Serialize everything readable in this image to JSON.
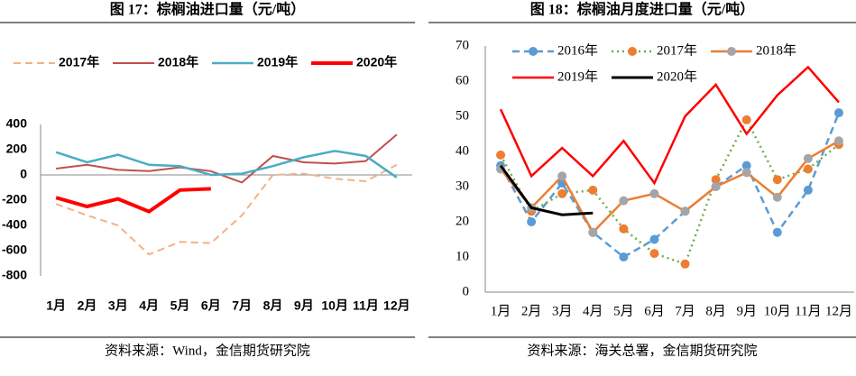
{
  "chart_data": [
    {
      "type": "line",
      "title": "图 17：棕榈油进口量（元/吨）",
      "source": "资料来源：Wind，金信期货研究院",
      "categories": [
        "1月",
        "2月",
        "3月",
        "4月",
        "5月",
        "6月",
        "7月",
        "8月",
        "9月",
        "10月",
        "11月",
        "12月"
      ],
      "ylim": [
        -800,
        400
      ],
      "yticks": [
        400,
        200,
        0,
        -200,
        -400,
        -600,
        -800
      ],
      "legend": "top",
      "series": [
        {
          "name": "2017年",
          "color": "#f4b183",
          "dash": "dashed",
          "marker": false,
          "line_width": 2,
          "values": [
            -230,
            -320,
            -400,
            -630,
            -530,
            -540,
            -320,
            0,
            10,
            -30,
            -50,
            80
          ]
        },
        {
          "name": "2018年",
          "color": "#c0504d",
          "dash": "solid",
          "marker": false,
          "line_width": 2,
          "values": [
            50,
            80,
            40,
            30,
            60,
            30,
            -60,
            150,
            100,
            90,
            110,
            320
          ]
        },
        {
          "name": "2019年",
          "color": "#4bacc6",
          "dash": "solid",
          "marker": false,
          "line_width": 2.5,
          "values": [
            180,
            100,
            160,
            80,
            70,
            0,
            10,
            70,
            140,
            190,
            150,
            -20
          ]
        },
        {
          "name": "2020年",
          "color": "#ff0000",
          "dash": "solid",
          "marker": false,
          "line_width": 4,
          "values": [
            -180,
            -250,
            -190,
            -290,
            -120,
            -110,
            null,
            null,
            null,
            null,
            null,
            null
          ]
        }
      ]
    },
    {
      "type": "line",
      "title": "图 18：棕榈油月度进口量（元/吨）",
      "source": "资料来源：海关总署，金信期货研究院",
      "categories": [
        "1月",
        "2月",
        "3月",
        "4月",
        "5月",
        "6月",
        "7月",
        "8月",
        "9月",
        "10月",
        "11月",
        "12月"
      ],
      "ylim": [
        0,
        70
      ],
      "yticks": [
        0,
        10,
        20,
        30,
        40,
        50,
        60,
        70
      ],
      "legend": "top-left",
      "series": [
        {
          "name": "2016年",
          "color": "#5b9bd5",
          "dash": "dashed",
          "marker": true,
          "line_width": 2.5,
          "values": [
            36,
            20,
            31,
            17,
            10,
            15,
            23,
            30,
            36,
            17,
            29,
            51
          ]
        },
        {
          "name": "2017年",
          "color": "#70ad47",
          "marker_color": "#ed7d31",
          "dash": "dotted",
          "marker": true,
          "line_width": 2.5,
          "values": [
            39,
            23,
            28,
            29,
            18,
            11,
            8,
            32,
            49,
            32,
            35,
            42
          ]
        },
        {
          "name": "2018年",
          "color": "#ed7d31",
          "marker_color": "#a5a5a5",
          "dash": "solid",
          "marker": true,
          "line_width": 2.5,
          "values": [
            35,
            24,
            33,
            17,
            26,
            28,
            23,
            30,
            34,
            27,
            38,
            43
          ]
        },
        {
          "name": "2019年",
          "color": "#ff0000",
          "dash": "solid",
          "marker": false,
          "line_width": 2.5,
          "values": [
            52,
            33,
            41,
            33,
            43,
            31,
            50,
            59,
            45,
            56,
            64,
            54
          ]
        },
        {
          "name": "2020年",
          "color": "#000000",
          "dash": "solid",
          "marker": false,
          "line_width": 3,
          "values": [
            36,
            24,
            22,
            22.5,
            null,
            null,
            null,
            null,
            null,
            null,
            null,
            null
          ]
        }
      ]
    }
  ]
}
